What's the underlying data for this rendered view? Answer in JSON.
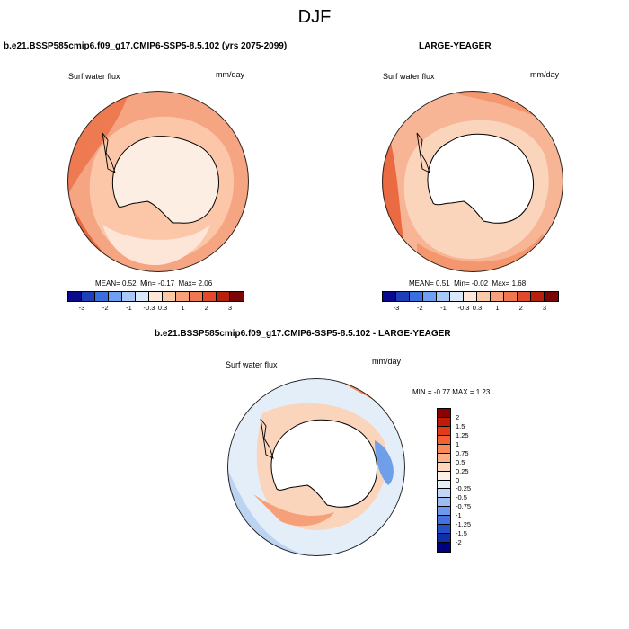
{
  "figure": {
    "title": "DJF"
  },
  "panels": [
    {
      "title": "b.e21.BSSP585cmip6.f09_g17.CMIP6-SSP5-8.5.102 (yrs 2075-2099)",
      "variable": "Surf water flux",
      "units": "mm/day",
      "mean_label": "MEAN=",
      "mean": "0.52",
      "min_label": "Min=",
      "min": "-0.17",
      "max_label": "Max=",
      "max": "2.06"
    },
    {
      "title": "LARGE-YEAGER",
      "variable": "Surf water flux",
      "units": "mm/day",
      "mean_label": "MEAN=",
      "mean": "0.51",
      "min_label": "Min=",
      "min": "-0.02",
      "max_label": "Max=",
      "max": "1.68"
    },
    {
      "title": "b.e21.BSSP585cmip6.f09_g17.CMIP6-SSP5-8.5.102 - LARGE-YEAGER",
      "variable": "Surf water flux",
      "units": "mm/day",
      "min_label": "MIN =",
      "min": "-0.77",
      "max_label": "MAX =",
      "max": "1.23"
    }
  ],
  "colorbar_horizontal": {
    "labels": [
      "-3",
      "-2",
      "-1",
      "-0.3",
      "0.3",
      "1",
      "2",
      "3"
    ],
    "colors": [
      "#0a0a8c",
      "#1f3fb8",
      "#3a6fe0",
      "#6f9ff0",
      "#a8c8f8",
      "#dbe8fa",
      "#fde7d8",
      "#fbc8a8",
      "#f7a07a",
      "#f07850",
      "#e04a2a",
      "#b8200e",
      "#7a0606"
    ]
  },
  "colorbar_vertical": {
    "labels": [
      "2",
      "1.5",
      "1.25",
      "1",
      "0.75",
      "0.5",
      "0.25",
      "0",
      "-0.25",
      "-0.5",
      "-0.75",
      "-1",
      "-1.25",
      "-1.5",
      "-2"
    ],
    "colors": [
      "#8b0000",
      "#c01a08",
      "#e03c1c",
      "#f46034",
      "#f78a5a",
      "#fbb088",
      "#fdd6bc",
      "#fdf0e6",
      "#e2eefa",
      "#c0d8f6",
      "#9cbcf0",
      "#6e98ea",
      "#4472e0",
      "#2450c8",
      "#1030a8",
      "#000080"
    ]
  },
  "chart_data": [
    {
      "type": "heatmap",
      "title": "b.e21.BSSP585cmip6.f09_g17.CMIP6-SSP5-8.5.102 (yrs 2075-2099)",
      "variable": "Surf water flux",
      "units": "mm/day",
      "projection": "south polar stereographic",
      "mean": 0.52,
      "min": -0.17,
      "max": 2.06,
      "levels": [
        -3,
        -2,
        -1,
        -0.3,
        0.3,
        1,
        2,
        3
      ]
    },
    {
      "type": "heatmap",
      "title": "LARGE-YEAGER",
      "variable": "Surf water flux",
      "units": "mm/day",
      "projection": "south polar stereographic",
      "mean": 0.51,
      "min": -0.02,
      "max": 1.68,
      "levels": [
        -3,
        -2,
        -1,
        -0.3,
        0.3,
        1,
        2,
        3
      ]
    },
    {
      "type": "heatmap",
      "title": "b.e21.BSSP585cmip6.f09_g17.CMIP6-SSP5-8.5.102 - LARGE-YEAGER",
      "variable": "Surf water flux",
      "units": "mm/day",
      "projection": "south polar stereographic",
      "min": -0.77,
      "max": 1.23,
      "levels": [
        -2,
        -1.5,
        -1.25,
        -1,
        -0.75,
        -0.5,
        -0.25,
        0,
        0.25,
        0.5,
        0.75,
        1,
        1.25,
        1.5,
        2
      ]
    }
  ]
}
